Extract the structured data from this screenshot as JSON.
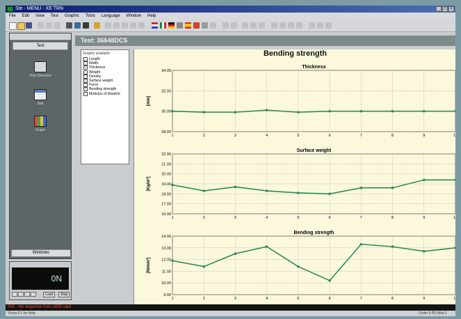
{
  "window": {
    "title": "Ste - MENU - XE TRN",
    "buttons": [
      "_",
      "□",
      "×"
    ]
  },
  "menu": [
    "File",
    "Edit",
    "View",
    "Test",
    "Graphic",
    "Tools",
    "Language",
    "Window",
    "Help"
  ],
  "left_panel": {
    "header": "",
    "tab": "Test",
    "items": [
      "Test Overview",
      "Stat",
      "Graph"
    ],
    "footer": "Windows"
  },
  "mini_panel": {
    "display": "0N",
    "label1": "Load",
    "label2": "Stop"
  },
  "test_header": "Test: 36648DCS",
  "graphs_available": {
    "title": "Graphs available",
    "items": [
      {
        "label": "Length",
        "checked": false
      },
      {
        "label": "Width",
        "checked": false
      },
      {
        "label": "Thickness",
        "checked": true
      },
      {
        "label": "Weight",
        "checked": false
      },
      {
        "label": "Density",
        "checked": false
      },
      {
        "label": "Surface weight",
        "checked": true
      },
      {
        "label": "Force",
        "checked": false
      },
      {
        "label": "Bending strength",
        "checked": true
      },
      {
        "label": "Modulus of Elasticit",
        "checked": false
      }
    ]
  },
  "main_title": "Bending strength",
  "chart_data": [
    {
      "type": "line",
      "title": "Thickness",
      "ylabel": "[mm]",
      "ylim": [
        28,
        34
      ],
      "yticks": [
        "28.00",
        "30.00",
        "32.00",
        "34.00"
      ],
      "x": [
        1,
        2,
        3,
        4,
        5,
        6,
        7,
        8,
        9,
        10
      ],
      "values": [
        30.0,
        29.9,
        29.9,
        30.1,
        29.9,
        30.0,
        30.0,
        30.0,
        30.0,
        30.0
      ],
      "grid": true,
      "color": "#2e8a5c"
    },
    {
      "type": "line",
      "title": "Surface weight",
      "ylabel": "[Kg/m²]",
      "ylim": [
        16,
        22
      ],
      "yticks": [
        "16.00",
        "17.00",
        "18.00",
        "19.00",
        "20.00",
        "21.00",
        "22.00"
      ],
      "x": [
        1,
        2,
        3,
        4,
        5,
        6,
        7,
        8,
        9,
        10
      ],
      "values": [
        18.9,
        18.3,
        18.7,
        18.3,
        18.1,
        18.0,
        18.6,
        18.6,
        19.4,
        19.4
      ],
      "grid": true,
      "color": "#2e8a5c"
    },
    {
      "type": "line",
      "title": "Bending strength",
      "ylabel": "[N/mm²]",
      "ylim": [
        9,
        14
      ],
      "yticks": [
        "9.00",
        "10.00",
        "11.00",
        "12.00",
        "13.00",
        "14.00"
      ],
      "x": [
        1,
        2,
        3,
        4,
        5,
        6,
        7,
        8,
        9,
        10
      ],
      "values": [
        11.9,
        11.4,
        12.5,
        13.1,
        11.4,
        10.2,
        13.3,
        13.1,
        12.7,
        13.0
      ],
      "grid": true,
      "color": "#2e8a5c"
    }
  ],
  "status_error": "000 - No response from u500 card",
  "bottom": {
    "left": "Press F1 for Help",
    "right": "Order 6   PD   Mod 1"
  }
}
